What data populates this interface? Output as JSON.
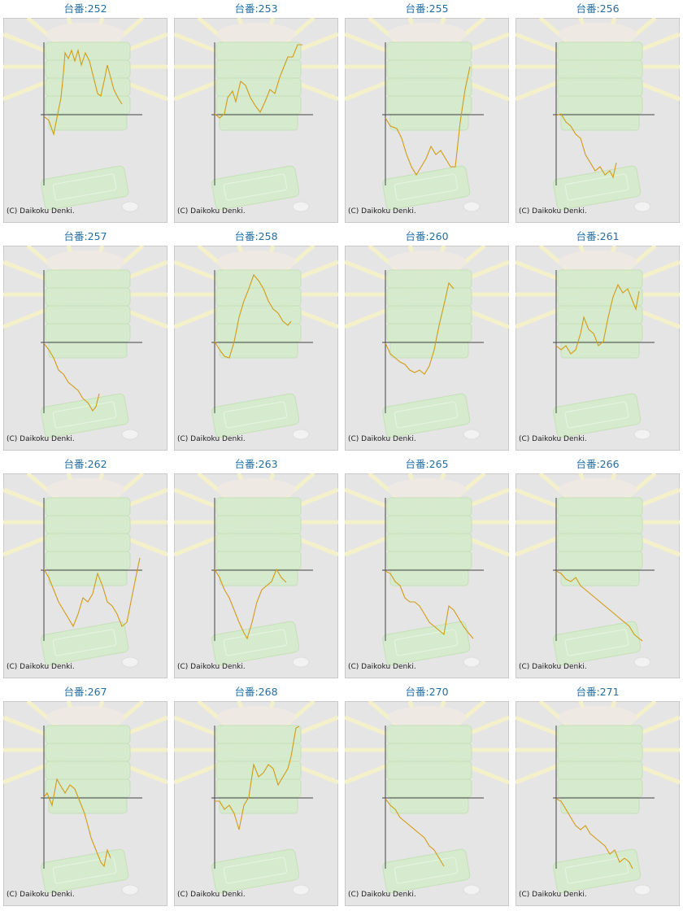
{
  "chart_data": [
    {
      "type": "line",
      "title": "台番:252",
      "caption": "(C) Daikoku Denki.",
      "color": "#d39b14",
      "xlim": [
        0,
        121
      ],
      "ylim": [
        -87,
        89
      ],
      "x": [
        0,
        6,
        12,
        16,
        21,
        24,
        26,
        30,
        34,
        38,
        42,
        46,
        51,
        56,
        61,
        66,
        70,
        74,
        78,
        82,
        86,
        91,
        96
      ],
      "values": [
        -2,
        -7,
        -24,
        -4,
        21,
        51,
        76,
        69,
        79,
        66,
        79,
        61,
        76,
        66,
        46,
        26,
        23,
        41,
        61,
        46,
        31,
        21,
        13
      ]
    },
    {
      "type": "line",
      "title": "台番:253",
      "caption": "(C) Daikoku Denki.",
      "color": "#d39b14",
      "xlim": [
        0,
        121
      ],
      "ylim": [
        -87,
        89
      ],
      "x": [
        0,
        6,
        12,
        16,
        22,
        26,
        32,
        38,
        44,
        50,
        56,
        62,
        68,
        74,
        80,
        86,
        90,
        96,
        102,
        108
      ],
      "values": [
        1,
        -4,
        1,
        21,
        29,
        16,
        41,
        36,
        21,
        11,
        3,
        16,
        31,
        26,
        46,
        61,
        71,
        71,
        86,
        86
      ]
    },
    {
      "type": "line",
      "title": "台番:255",
      "caption": "(C) Daikoku Denki.",
      "color": "#d39b14",
      "xlim": [
        0,
        121
      ],
      "ylim": [
        -87,
        89
      ],
      "x": [
        0,
        6,
        14,
        20,
        26,
        32,
        38,
        44,
        50,
        56,
        62,
        68,
        74,
        80,
        86,
        92,
        98,
        104
      ],
      "values": [
        -4,
        -14,
        -17,
        -29,
        -49,
        -64,
        -74,
        -64,
        -54,
        -39,
        -49,
        -44,
        -54,
        -64,
        -64,
        -9,
        31,
        59
      ]
    },
    {
      "type": "line",
      "title": "台番:256",
      "caption": "(C) Daikoku Denki.",
      "color": "#d39b14",
      "xlim": [
        0,
        121
      ],
      "ylim": [
        -87,
        89
      ],
      "x": [
        0,
        6,
        12,
        18,
        24,
        30,
        36,
        42,
        48,
        54,
        60,
        66,
        70,
        74
      ],
      "values": [
        -1,
        1,
        -9,
        -14,
        -24,
        -29,
        -49,
        -59,
        -69,
        -64,
        -74,
        -69,
        -77,
        -59
      ]
    },
    {
      "type": "line",
      "title": "台番:257",
      "caption": "(C) Daikoku Denki.",
      "color": "#d39b14",
      "xlim": [
        0,
        121
      ],
      "ylim": [
        -87,
        89
      ],
      "x": [
        0,
        6,
        12,
        18,
        24,
        30,
        36,
        42,
        48,
        54,
        60,
        64,
        68
      ],
      "values": [
        -1,
        -9,
        -19,
        -34,
        -39,
        -49,
        -54,
        -59,
        -69,
        -74,
        -84,
        -79,
        -63
      ]
    },
    {
      "type": "line",
      "title": "台番:258",
      "caption": "(C) Daikoku Denki.",
      "color": "#d39b14",
      "xlim": [
        0,
        121
      ],
      "ylim": [
        -87,
        89
      ],
      "x": [
        0,
        6,
        12,
        18,
        24,
        30,
        36,
        42,
        48,
        54,
        60,
        66,
        72,
        78,
        84,
        90,
        94
      ],
      "values": [
        1,
        -9,
        -17,
        -19,
        1,
        31,
        51,
        66,
        83,
        76,
        66,
        51,
        41,
        36,
        26,
        21,
        26
      ]
    },
    {
      "type": "line",
      "title": "台番:260",
      "caption": "(C) Daikoku Denki.",
      "color": "#d39b14",
      "xlim": [
        0,
        121
      ],
      "ylim": [
        -87,
        89
      ],
      "x": [
        0,
        6,
        12,
        18,
        24,
        30,
        36,
        42,
        48,
        54,
        60,
        66,
        72,
        78,
        84
      ],
      "values": [
        -1,
        -14,
        -19,
        -24,
        -27,
        -34,
        -37,
        -34,
        -39,
        -29,
        -9,
        21,
        46,
        73,
        66
      ]
    },
    {
      "type": "line",
      "title": "台番:261",
      "caption": "(C) Daikoku Denki.",
      "color": "#d39b14",
      "xlim": [
        0,
        121
      ],
      "ylim": [
        -87,
        89
      ],
      "x": [
        0,
        6,
        12,
        18,
        24,
        30,
        34,
        40,
        46,
        52,
        58,
        64,
        70,
        76,
        82,
        88,
        94,
        98,
        102
      ],
      "values": [
        -4,
        -9,
        -4,
        -14,
        -9,
        11,
        31,
        16,
        11,
        -4,
        1,
        31,
        56,
        71,
        61,
        66,
        51,
        41,
        63
      ]
    },
    {
      "type": "line",
      "title": "台番:262",
      "caption": "(C) Daikoku Denki.",
      "color": "#d39b14",
      "xlim": [
        0,
        121
      ],
      "ylim": [
        -87,
        89
      ],
      "x": [
        0,
        6,
        12,
        18,
        24,
        30,
        36,
        42,
        48,
        54,
        60,
        66,
        72,
        78,
        84,
        90,
        96,
        102,
        108,
        114,
        118
      ],
      "values": [
        1,
        -9,
        -24,
        -39,
        -49,
        -59,
        -69,
        -54,
        -34,
        -39,
        -29,
        -4,
        -19,
        -39,
        -44,
        -54,
        -69,
        -64,
        -34,
        -4,
        15
      ]
    },
    {
      "type": "line",
      "title": "台番:263",
      "caption": "(C) Daikoku Denki.",
      "color": "#d39b14",
      "xlim": [
        0,
        121
      ],
      "ylim": [
        -87,
        89
      ],
      "x": [
        0,
        6,
        12,
        18,
        24,
        30,
        36,
        40,
        46,
        52,
        58,
        64,
        70,
        76,
        82,
        88
      ],
      "values": [
        1,
        -9,
        -24,
        -34,
        -49,
        -64,
        -77,
        -84,
        -64,
        -39,
        -24,
        -19,
        -14,
        1,
        -9,
        -15
      ]
    },
    {
      "type": "line",
      "title": "台番:265",
      "caption": "(C) Daikoku Denki.",
      "color": "#d39b14",
      "xlim": [
        0,
        121
      ],
      "ylim": [
        -87,
        89
      ],
      "x": [
        0,
        6,
        12,
        18,
        24,
        30,
        36,
        42,
        48,
        54,
        60,
        66,
        72,
        78,
        84,
        90,
        96,
        102,
        108
      ],
      "values": [
        -1,
        -4,
        -14,
        -19,
        -34,
        -39,
        -39,
        -44,
        -54,
        -64,
        -69,
        -74,
        -79,
        -44,
        -49,
        -59,
        -69,
        -77,
        -84
      ]
    },
    {
      "type": "line",
      "title": "台番:266",
      "caption": "(C) Daikoku Denki.",
      "color": "#d39b14",
      "xlim": [
        0,
        121
      ],
      "ylim": [
        -87,
        89
      ],
      "x": [
        0,
        6,
        12,
        18,
        24,
        30,
        36,
        42,
        48,
        54,
        60,
        66,
        72,
        78,
        84,
        90,
        96,
        102,
        106
      ],
      "values": [
        -1,
        -4,
        -11,
        -14,
        -9,
        -19,
        -24,
        -29,
        -34,
        -39,
        -44,
        -49,
        -54,
        -59,
        -64,
        -69,
        -79,
        -84,
        -87
      ]
    },
    {
      "type": "line",
      "title": "台番:267",
      "caption": "(C) Daikoku Denki.",
      "color": "#d39b14",
      "xlim": [
        0,
        121
      ],
      "ylim": [
        -87,
        89
      ],
      "x": [
        0,
        4,
        10,
        16,
        20,
        26,
        32,
        38,
        42,
        46,
        50,
        54,
        58,
        62,
        66,
        70,
        74,
        78,
        82
      ],
      "values": [
        1,
        6,
        -9,
        23,
        16,
        6,
        16,
        11,
        1,
        -9,
        -19,
        -34,
        -49,
        -59,
        -69,
        -79,
        -84,
        -64,
        -74
      ]
    },
    {
      "type": "line",
      "title": "台番:268",
      "caption": "(C) Daikoku Denki.",
      "color": "#d39b14",
      "xlim": [
        0,
        121
      ],
      "ylim": [
        -87,
        89
      ],
      "x": [
        0,
        6,
        12,
        18,
        24,
        30,
        36,
        42,
        48,
        54,
        60,
        66,
        72,
        78,
        84,
        90,
        94,
        100,
        104
      ],
      "values": [
        -4,
        -4,
        -14,
        -9,
        -19,
        -39,
        -9,
        1,
        41,
        26,
        31,
        41,
        36,
        16,
        26,
        36,
        51,
        86,
        88
      ]
    },
    {
      "type": "line",
      "title": "台番:270",
      "caption": "(C) Daikoku Denki.",
      "color": "#d39b14",
      "xlim": [
        0,
        121
      ],
      "ylim": [
        -87,
        89
      ],
      "x": [
        0,
        6,
        12,
        18,
        24,
        30,
        36,
        42,
        48,
        54,
        60,
        66,
        72
      ],
      "values": [
        -1,
        -9,
        -14,
        -24,
        -29,
        -34,
        -39,
        -44,
        -49,
        -59,
        -64,
        -74,
        -84
      ]
    },
    {
      "type": "line",
      "title": "台番:271",
      "caption": "(C) Daikoku Denki.",
      "color": "#d39b14",
      "xlim": [
        0,
        121
      ],
      "ylim": [
        -87,
        89
      ],
      "x": [
        0,
        6,
        12,
        18,
        24,
        30,
        36,
        42,
        48,
        54,
        60,
        66,
        72,
        78,
        84,
        90,
        94
      ],
      "values": [
        -1,
        -4,
        -14,
        -24,
        -34,
        -39,
        -34,
        -44,
        -49,
        -54,
        -59,
        -69,
        -64,
        -79,
        -74,
        -79,
        -87
      ]
    }
  ]
}
